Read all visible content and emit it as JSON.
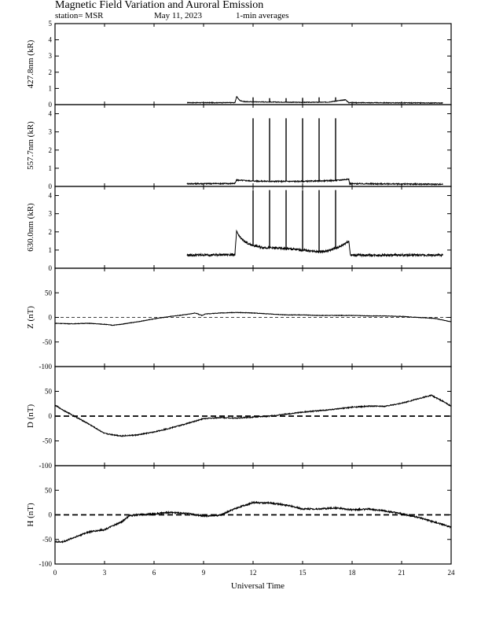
{
  "header": {
    "title": "Magnetic Field Variation and Auroral Emission",
    "station": "station= MSR",
    "date": "May 11, 2023",
    "averaging": "1-min averages"
  },
  "chart_data": [
    {
      "type": "line",
      "ylabel": "427.8nm (kR)",
      "ylim": [
        0,
        5
      ],
      "yticks": [
        0,
        1,
        2,
        3,
        4,
        5
      ],
      "xlim": [
        0,
        24
      ],
      "baseline": null,
      "noise": 0.02,
      "points": [
        [
          8,
          0.12
        ],
        [
          10.9,
          0.12
        ],
        [
          11,
          0.5
        ],
        [
          11.2,
          0.25
        ],
        [
          11.5,
          0.18
        ],
        [
          13,
          0.16
        ],
        [
          15,
          0.14
        ],
        [
          16.5,
          0.15
        ],
        [
          17.6,
          0.3
        ],
        [
          17.8,
          0.12
        ],
        [
          23.5,
          0.1
        ]
      ],
      "spikes": [
        [
          12,
          0.45
        ],
        [
          13,
          0.4
        ],
        [
          14,
          0.4
        ],
        [
          15,
          0.42
        ],
        [
          16,
          0.45
        ],
        [
          17,
          0.45
        ]
      ]
    },
    {
      "type": "line",
      "ylabel": "557.7nm (kR)",
      "ylim": [
        0,
        4.5
      ],
      "yticks": [
        0,
        1,
        2,
        3,
        4
      ],
      "xlim": [
        0,
        24
      ],
      "baseline": null,
      "noise": 0.03,
      "points": [
        [
          8,
          0.15
        ],
        [
          10.9,
          0.16
        ],
        [
          11,
          0.35
        ],
        [
          12,
          0.3
        ],
        [
          13,
          0.28
        ],
        [
          14,
          0.28
        ],
        [
          15,
          0.28
        ],
        [
          16,
          0.3
        ],
        [
          17,
          0.33
        ],
        [
          17.8,
          0.4
        ],
        [
          17.85,
          0.15
        ],
        [
          23.5,
          0.12
        ]
      ],
      "spikes": [
        [
          12,
          3.75
        ],
        [
          13,
          3.75
        ],
        [
          14,
          3.75
        ],
        [
          15,
          3.75
        ],
        [
          16,
          3.75
        ],
        [
          17,
          3.75
        ]
      ]
    },
    {
      "type": "line",
      "ylabel": "630.0nm (kR)",
      "ylim": [
        0,
        4.5
      ],
      "yticks": [
        0,
        1,
        2,
        3,
        4
      ],
      "xlim": [
        0,
        24
      ],
      "baseline": null,
      "noise": 0.06,
      "points": [
        [
          8,
          0.72
        ],
        [
          10.9,
          0.75
        ],
        [
          11,
          2.0
        ],
        [
          11.3,
          1.6
        ],
        [
          11.8,
          1.3
        ],
        [
          12.5,
          1.15
        ],
        [
          14,
          1.08
        ],
        [
          15,
          1.0
        ],
        [
          16,
          0.9
        ],
        [
          16.5,
          0.95
        ],
        [
          17.3,
          1.2
        ],
        [
          17.8,
          1.5
        ],
        [
          17.9,
          0.72
        ],
        [
          23.5,
          0.72
        ]
      ],
      "spikes": [
        [
          12,
          4.3
        ],
        [
          13,
          4.3
        ],
        [
          14,
          4.3
        ],
        [
          15,
          4.3
        ],
        [
          16,
          4.3
        ],
        [
          17,
          4.3
        ]
      ]
    },
    {
      "type": "line",
      "ylabel": "Z (nT)",
      "ylim": [
        -100,
        100
      ],
      "yticks": [
        -100,
        -50,
        0,
        50
      ],
      "xlim": [
        0,
        24
      ],
      "baseline": 0,
      "baseline_style": "thin",
      "noise": 0.5,
      "points": [
        [
          0,
          -12
        ],
        [
          1,
          -13
        ],
        [
          2,
          -12
        ],
        [
          3,
          -14
        ],
        [
          3.5,
          -16
        ],
        [
          4,
          -14
        ],
        [
          5,
          -9
        ],
        [
          6,
          -3
        ],
        [
          7,
          2
        ],
        [
          8,
          6
        ],
        [
          8.5,
          9
        ],
        [
          8.9,
          4
        ],
        [
          9.1,
          7
        ],
        [
          10,
          9
        ],
        [
          11,
          10
        ],
        [
          12,
          9
        ],
        [
          13,
          7
        ],
        [
          14,
          5
        ],
        [
          15,
          5
        ],
        [
          16,
          4
        ],
        [
          17,
          4
        ],
        [
          18,
          4
        ],
        [
          19,
          3
        ],
        [
          20,
          3
        ],
        [
          21,
          2
        ],
        [
          22,
          0
        ],
        [
          23,
          -2
        ],
        [
          24,
          -9
        ]
      ]
    },
    {
      "type": "line",
      "ylabel": "D (nT)",
      "ylim": [
        -100,
        100
      ],
      "yticks": [
        -100,
        -50,
        0,
        50
      ],
      "xlim": [
        0,
        24
      ],
      "baseline": 0,
      "baseline_style": "dashed",
      "noise": 1,
      "points": [
        [
          0,
          22
        ],
        [
          0.5,
          12
        ],
        [
          1,
          3
        ],
        [
          2,
          -15
        ],
        [
          3,
          -35
        ],
        [
          4,
          -40
        ],
        [
          5,
          -38
        ],
        [
          6,
          -32
        ],
        [
          7,
          -24
        ],
        [
          8,
          -15
        ],
        [
          9,
          -5
        ],
        [
          10,
          -3
        ],
        [
          11,
          -4
        ],
        [
          12,
          -2
        ],
        [
          13,
          0
        ],
        [
          14,
          4
        ],
        [
          15,
          8
        ],
        [
          16,
          11
        ],
        [
          17,
          14
        ],
        [
          18,
          18
        ],
        [
          19,
          20
        ],
        [
          20,
          20
        ],
        [
          21,
          26
        ],
        [
          22,
          35
        ],
        [
          22.8,
          42
        ],
        [
          23.5,
          30
        ],
        [
          24,
          20
        ]
      ]
    },
    {
      "type": "line",
      "ylabel": "H (nT)",
      "ylim": [
        -100,
        100
      ],
      "yticks": [
        -100,
        -50,
        0,
        50
      ],
      "xlim": [
        0,
        24
      ],
      "baseline": 0,
      "baseline_style": "dashed",
      "noise": 1.5,
      "points": [
        [
          0,
          -55
        ],
        [
          0.5,
          -55
        ],
        [
          1,
          -48
        ],
        [
          2,
          -35
        ],
        [
          3,
          -30
        ],
        [
          4,
          -15
        ],
        [
          4.5,
          -2
        ],
        [
          5,
          0
        ],
        [
          6,
          2
        ],
        [
          7,
          5
        ],
        [
          8,
          3
        ],
        [
          9,
          -2
        ],
        [
          10,
          -1
        ],
        [
          11,
          14
        ],
        [
          12,
          25
        ],
        [
          13,
          24
        ],
        [
          14,
          20
        ],
        [
          15,
          12
        ],
        [
          16,
          12
        ],
        [
          17,
          14
        ],
        [
          18,
          10
        ],
        [
          19,
          12
        ],
        [
          20,
          8
        ],
        [
          21,
          2
        ],
        [
          22,
          -5
        ],
        [
          23,
          -15
        ],
        [
          24,
          -25
        ]
      ]
    }
  ],
  "x_axis": {
    "label": "Universal Time",
    "ticks": [
      0,
      3,
      6,
      9,
      12,
      15,
      18,
      21,
      24
    ]
  }
}
